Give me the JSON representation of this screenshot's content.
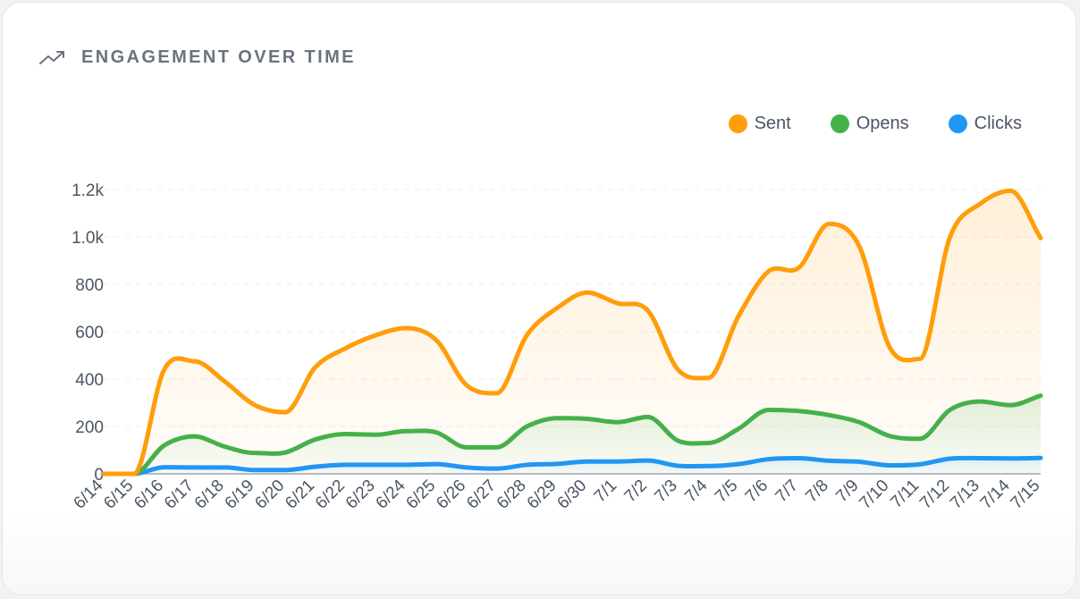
{
  "header": {
    "title": "ENGAGEMENT OVER TIME",
    "icon": "trending-up-icon"
  },
  "colors": {
    "sent": "#ff9d0a",
    "opens": "#46b04a",
    "clicks": "#2196f3",
    "grid": "#e5e7eb",
    "axis": "#4b5563"
  },
  "chart_data": {
    "type": "area",
    "title": "ENGAGEMENT OVER TIME",
    "xlabel": "",
    "ylabel": "",
    "ylim": [
      0,
      1200
    ],
    "yticks": [
      0,
      200,
      400,
      600,
      800,
      1000,
      1200
    ],
    "ytick_labels": [
      "0",
      "200",
      "400",
      "600",
      "800",
      "1.0k",
      "1.2k"
    ],
    "grid": true,
    "legend_position": "top-right",
    "x": [
      "6/14",
      "6/15",
      "6/16",
      "6/17",
      "6/18",
      "6/19",
      "6/20",
      "6/21",
      "6/22",
      "6/23",
      "6/24",
      "6/25",
      "6/26",
      "6/27",
      "6/28",
      "6/29",
      "6/30",
      "7/1",
      "7/2",
      "7/3",
      "7/4",
      "7/5",
      "7/6",
      "7/7",
      "7/8",
      "7/9",
      "7/10",
      "7/11",
      "7/12",
      "7/13",
      "7/14",
      "7/15"
    ],
    "series": [
      {
        "name": "Sent",
        "color": "#ff9d0a",
        "values": [
          0,
          0,
          440,
          475,
          390,
          290,
          260,
          450,
          530,
          585,
          615,
          565,
          375,
          340,
          585,
          700,
          765,
          720,
          690,
          440,
          405,
          665,
          855,
          870,
          1055,
          960,
          535,
          485,
          1000,
          1140,
          1195,
          995
        ]
      },
      {
        "name": "Opens",
        "color": "#46b04a",
        "values": [
          0,
          0,
          120,
          158,
          115,
          88,
          90,
          145,
          168,
          165,
          180,
          175,
          112,
          112,
          200,
          235,
          232,
          218,
          240,
          140,
          130,
          190,
          270,
          265,
          248,
          218,
          160,
          148,
          270,
          305,
          290,
          330
        ]
      },
      {
        "name": "Clicks",
        "color": "#2196f3",
        "values": [
          0,
          0,
          28,
          27,
          27,
          16,
          16,
          30,
          38,
          38,
          38,
          41,
          27,
          22,
          38,
          42,
          52,
          52,
          56,
          34,
          33,
          41,
          62,
          66,
          55,
          51,
          36,
          40,
          64,
          66,
          65,
          67
        ]
      }
    ]
  }
}
